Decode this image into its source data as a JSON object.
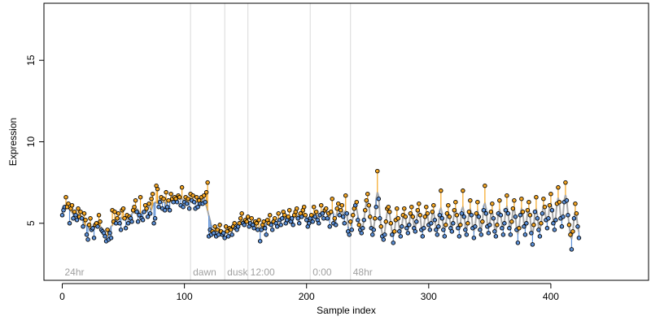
{
  "chart_data": {
    "type": "scatter",
    "xlabel": "Sample index",
    "ylabel": "Expression",
    "xlim": [
      -15,
      480
    ],
    "ylim": [
      1.5,
      18.5
    ],
    "x_ticks": [
      0,
      100,
      200,
      300,
      400
    ],
    "y_ticks": [
      5,
      10,
      15
    ],
    "colors": {
      "above": "#f5a623",
      "below": "#5b8fd6",
      "fit": "#a9a9a9",
      "vline": "#d9d9d9"
    },
    "segments": [
      {
        "label": "24hr",
        "start": 0
      },
      {
        "label": "dawn",
        "start": 105
      },
      {
        "label": "dusk",
        "start": 133
      },
      {
        "label": "12:00",
        "start": 152
      },
      {
        "label": "0:00",
        "start": 203
      },
      {
        "label": "48hr",
        "start": 236
      }
    ],
    "series": [
      {
        "y": [
          5.5,
          5.8,
          6.0,
          6.6,
          6.0,
          6.2,
          5.0,
          5.9,
          6.1,
          5.3,
          5.7,
          5.5,
          5.2,
          5.9,
          5.4,
          5.7,
          5.3,
          4.8,
          5.6,
          5.2,
          4.3,
          4.0,
          4.9,
          5.3,
          4.6,
          4.7,
          4.1,
          4.9,
          5.0,
          4.8,
          5.5,
          5.1,
          4.6,
          4.5,
          4.4,
          4.2,
          3.9,
          4.6,
          4.0,
          4.4,
          4.1,
          5.8,
          5.1,
          5.7,
          5.0,
          5.3,
          5.6,
          5.0,
          4.6,
          5.8,
          5.9,
          5.3,
          4.7,
          5.5,
          5.0,
          5.4,
          5.3,
          5.1,
          5.8,
          6.0,
          6.4,
          5.7,
          5.1,
          5.5,
          6.6,
          5.3,
          5.2,
          5.7,
          6.1,
          5.9,
          5.4,
          6.2,
          5.6,
          6.5,
          6.8,
          5.0,
          5.3,
          7.3,
          7.1,
          6.0,
          6.3,
          6.6,
          5.9,
          6.5,
          5.8,
          6.9,
          6.0,
          6.4,
          5.8,
          6.8,
          6.5,
          6.3,
          6.6,
          6.5,
          6.3,
          6.7,
          6.6,
          6.1,
          7.2,
          6.0,
          6.3,
          6.6,
          6.2,
          6.5,
          5.9,
          6.8,
          6.4,
          6.7,
          6.3,
          5.9,
          6.6,
          6.0,
          6.4,
          6.2,
          6.6,
          6.2,
          6.7,
          6.3,
          6.9,
          7.5,
          4.2,
          4.6,
          4.3,
          4.5,
          4.4,
          4.8,
          4.2,
          4.6,
          4.3,
          4.9,
          4.5,
          4.3,
          4.4,
          4.1,
          4.8,
          4.5,
          4.2,
          4.7,
          4.6,
          4.3,
          4.8,
          5.0,
          4.7,
          4.6,
          4.8,
          5.0,
          5.3,
          5.6,
          5.0,
          4.9,
          5.2,
          5.1,
          5.4,
          4.8,
          5.0,
          5.3,
          4.9,
          4.7,
          5.1,
          5.0,
          4.6,
          5.2,
          3.9,
          4.6,
          4.9,
          5.1,
          4.7,
          4.3,
          5.2,
          5.0,
          5.5,
          4.9,
          4.6,
          5.1,
          5.3,
          5.0,
          4.8,
          5.6,
          5.2,
          4.9,
          5.3,
          5.7,
          5.5,
          5.0,
          5.2,
          5.4,
          5.8,
          5.1,
          5.3,
          4.9,
          5.5,
          5.7,
          5.9,
          5.3,
          5.0,
          5.6,
          5.4,
          5.8,
          6.0,
          5.5,
          5.2,
          4.8,
          5.0,
          5.3,
          5.5,
          5.1,
          6.0,
          5.4,
          5.7,
          5.2,
          5.0,
          5.5,
          6.1,
          5.6,
          5.3,
          5.8,
          5.9,
          5.3,
          5.6,
          4.8,
          5.7,
          6.5,
          5.0,
          5.3,
          4.9,
          5.9,
          6.2,
          5.5,
          5.8,
          6.1,
          5.4,
          5.0,
          6.7,
          5.6,
          4.5,
          4.3,
          5.1,
          4.6,
          5.5,
          5.9,
          6.1,
          6.3,
          5.2,
          4.9,
          4.6,
          4.4,
          4.7,
          5.2,
          5.8,
          6.4,
          6.8,
          6.1,
          5.4,
          4.7,
          4.3,
          4.6,
          5.3,
          6.0,
          8.2,
          6.5,
          5.3,
          4.8,
          4.2,
          4.0,
          4.3,
          5.1,
          5.9,
          6.0,
          5.7,
          5.0,
          4.3,
          3.8,
          4.5,
          5.2,
          5.9,
          5.3,
          4.5,
          4.2,
          4.8,
          5.5,
          5.9,
          5.4,
          4.7,
          4.4,
          4.9,
          5.6,
          6.0,
          5.4,
          4.7,
          4.5,
          5.1,
          5.8,
          6.2,
          5.5,
          4.6,
          4.2,
          4.7,
          5.4,
          6.0,
          5.6,
          4.9,
          4.6,
          5.0,
          5.7,
          6.1,
          5.2,
          4.6,
          4.3,
          4.8,
          5.5,
          7.0,
          5.3,
          4.6,
          4.2,
          4.9,
          5.6,
          6.1,
          5.4,
          4.7,
          4.5,
          5.0,
          5.8,
          6.3,
          5.5,
          4.7,
          4.2,
          4.9,
          5.6,
          7.0,
          5.4,
          4.6,
          4.3,
          5.0,
          5.7,
          6.4,
          5.5,
          4.7,
          4.1,
          4.8,
          5.6,
          6.3,
          5.4,
          4.6,
          4.3,
          5.1,
          5.8,
          7.3,
          5.6,
          4.8,
          4.4,
          4.9,
          5.7,
          6.2,
          5.3,
          4.5,
          4.2,
          4.9,
          5.6,
          6.4,
          5.5,
          4.7,
          4.3,
          5.0,
          5.8,
          6.7,
          5.6,
          4.7,
          4.3,
          5.1,
          5.9,
          6.4,
          5.4,
          4.6,
          3.8,
          4.7,
          5.5,
          6.5,
          5.7,
          4.8,
          4.3,
          5.0,
          5.8,
          6.3,
          5.5,
          4.4,
          3.7,
          4.9,
          5.7,
          6.6,
          5.3,
          4.6,
          4.2,
          5.0,
          5.6,
          6.5,
          6.0,
          5.2,
          4.7,
          5.3,
          6.1,
          6.8,
          5.8,
          5.0,
          4.6,
          5.2,
          6.2,
          7.2,
          6.3,
          5.3,
          4.8,
          5.4,
          6.3,
          7.5,
          6.4,
          5.5,
          4.9,
          4.3,
          3.4,
          4.5,
          5.3,
          6.2,
          5.6,
          4.8,
          4.1
        ]
      }
    ]
  }
}
